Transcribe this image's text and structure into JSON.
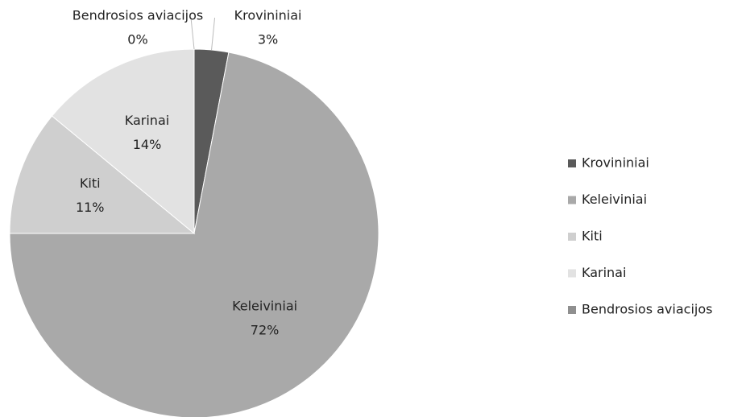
{
  "chart_data": {
    "type": "pie",
    "categories": [
      "Krovininiai",
      "Keleiviniai",
      "Kiti",
      "Karinai",
      "Bendrosios aviacijos"
    ],
    "values": [
      3,
      72,
      11,
      14,
      0
    ],
    "value_labels": [
      "3%",
      "72%",
      "11%",
      "14%",
      "0%"
    ],
    "colors": [
      "#5a5a5a",
      "#a9a9a9",
      "#cfcfcf",
      "#e2e2e2",
      "#8f8f8f"
    ],
    "legend": "right"
  }
}
